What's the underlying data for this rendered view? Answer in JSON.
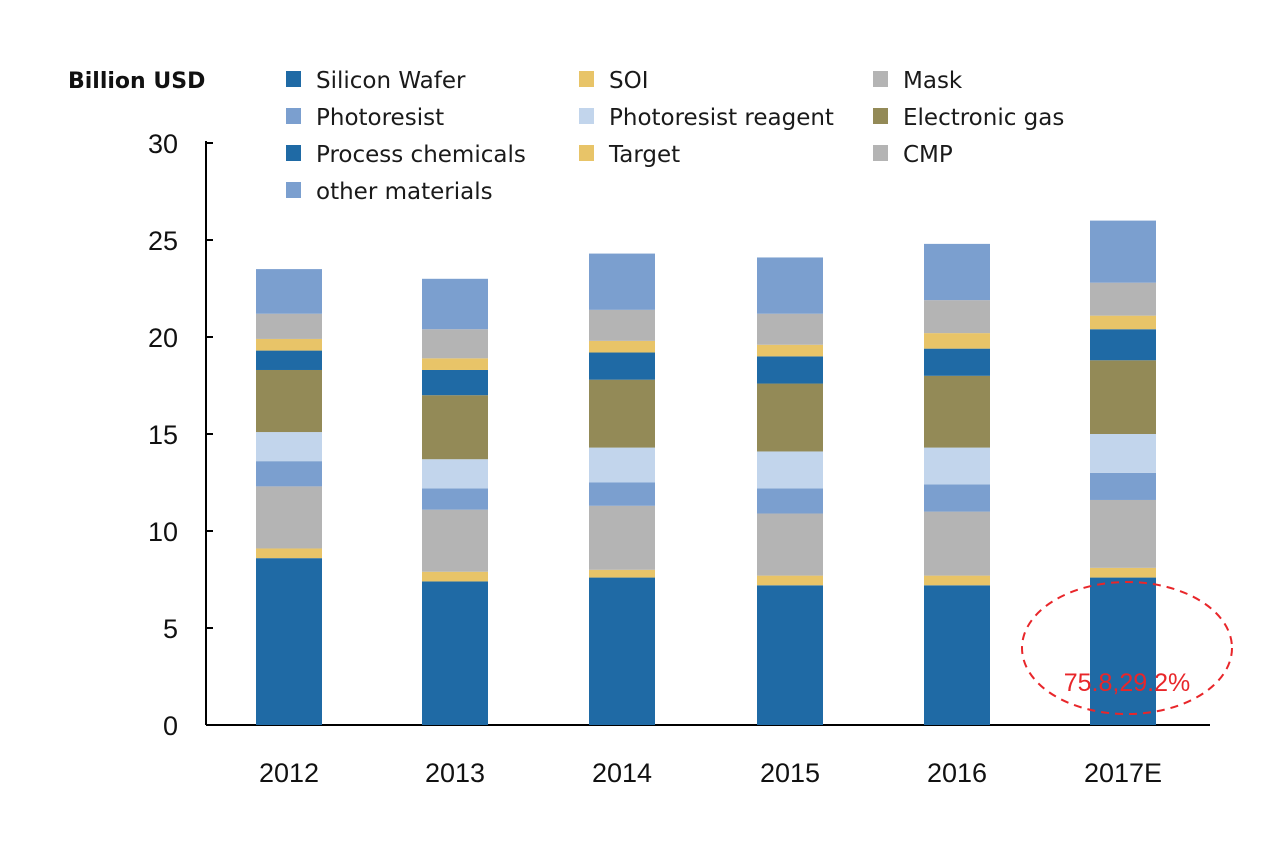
{
  "chart_data": {
    "type": "bar",
    "stacked": true,
    "ylabel": "Billion USD",
    "xlabel": "",
    "ylim": [
      0,
      30
    ],
    "yticks": [
      0,
      5,
      10,
      15,
      20,
      25,
      30
    ],
    "categories": [
      "2012",
      "2013",
      "2014",
      "2015",
      "2016",
      "2017E"
    ],
    "series": [
      {
        "name": "Silicon Wafer",
        "color": "#1f6aa5",
        "values": [
          8.6,
          7.4,
          7.6,
          7.2,
          7.2,
          7.6
        ]
      },
      {
        "name": "SOI",
        "color": "#e8c468",
        "values": [
          0.5,
          0.5,
          0.4,
          0.5,
          0.5,
          0.5
        ]
      },
      {
        "name": "Mask",
        "color": "#b4b4b4",
        "values": [
          3.2,
          3.2,
          3.3,
          3.2,
          3.3,
          3.5
        ]
      },
      {
        "name": "Photoresist",
        "color": "#7b9fcf",
        "values": [
          1.3,
          1.1,
          1.2,
          1.3,
          1.4,
          1.4
        ]
      },
      {
        "name": "Photoresist reagent",
        "color": "#c2d5ec",
        "values": [
          1.5,
          1.5,
          1.8,
          1.9,
          1.9,
          2.0
        ]
      },
      {
        "name": "Electronic gas",
        "color": "#938a57",
        "values": [
          3.2,
          3.3,
          3.5,
          3.5,
          3.7,
          3.8
        ]
      },
      {
        "name": "Process chemicals",
        "color": "#1f6aa5",
        "values": [
          1.0,
          1.3,
          1.4,
          1.4,
          1.4,
          1.6
        ]
      },
      {
        "name": "Target",
        "color": "#e8c468",
        "values": [
          0.6,
          0.6,
          0.6,
          0.6,
          0.8,
          0.7
        ]
      },
      {
        "name": "CMP",
        "color": "#b4b4b4",
        "values": [
          1.3,
          1.5,
          1.6,
          1.6,
          1.7,
          1.7
        ]
      },
      {
        "name": "other materials",
        "color": "#7b9fcf",
        "values": [
          2.3,
          2.6,
          2.9,
          2.9,
          2.9,
          3.2
        ]
      }
    ],
    "annotation": {
      "text": "75.8,29.2%",
      "category": "2017E",
      "color": "#e8262a"
    }
  }
}
